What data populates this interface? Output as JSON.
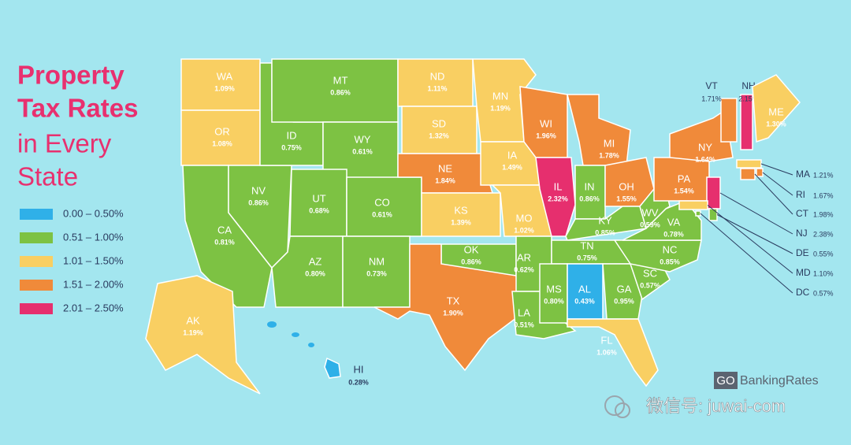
{
  "title": [
    "Property",
    "Tax Rates",
    "in Every",
    "State"
  ],
  "legend": [
    {
      "color": "#2fb0e8",
      "label": "0.00 – 0.50%"
    },
    {
      "color": "#7dc243",
      "label": "0.51 – 1.00%"
    },
    {
      "color": "#f9cf62",
      "label": "1.01 – 1.50%"
    },
    {
      "color": "#f08a3a",
      "label": "1.51 – 2.00%"
    },
    {
      "color": "#e62f6e",
      "label": "2.01 – 2.50%"
    }
  ],
  "states": [
    {
      "code": "WA",
      "rate": "1.09%",
      "bucket": 2
    },
    {
      "code": "OR",
      "rate": "1.08%",
      "bucket": 2
    },
    {
      "code": "CA",
      "rate": "0.81%",
      "bucket": 1
    },
    {
      "code": "NV",
      "rate": "0.86%",
      "bucket": 1
    },
    {
      "code": "ID",
      "rate": "0.75%",
      "bucket": 1
    },
    {
      "code": "MT",
      "rate": "0.86%",
      "bucket": 1
    },
    {
      "code": "WY",
      "rate": "0.61%",
      "bucket": 1
    },
    {
      "code": "UT",
      "rate": "0.68%",
      "bucket": 1
    },
    {
      "code": "CO",
      "rate": "0.61%",
      "bucket": 1
    },
    {
      "code": "AZ",
      "rate": "0.80%",
      "bucket": 1
    },
    {
      "code": "NM",
      "rate": "0.73%",
      "bucket": 1
    },
    {
      "code": "ND",
      "rate": "1.11%",
      "bucket": 2
    },
    {
      "code": "SD",
      "rate": "1.32%",
      "bucket": 2
    },
    {
      "code": "NE",
      "rate": "1.84%",
      "bucket": 3
    },
    {
      "code": "KS",
      "rate": "1.39%",
      "bucket": 2
    },
    {
      "code": "OK",
      "rate": "0.86%",
      "bucket": 1
    },
    {
      "code": "TX",
      "rate": "1.90%",
      "bucket": 3
    },
    {
      "code": "MN",
      "rate": "1.19%",
      "bucket": 2
    },
    {
      "code": "IA",
      "rate": "1.49%",
      "bucket": 2
    },
    {
      "code": "MO",
      "rate": "1.02%",
      "bucket": 2
    },
    {
      "code": "AR",
      "rate": "0.62%",
      "bucket": 1
    },
    {
      "code": "LA",
      "rate": "0.51%",
      "bucket": 1
    },
    {
      "code": "WI",
      "rate": "1.96%",
      "bucket": 3
    },
    {
      "code": "IL",
      "rate": "2.32%",
      "bucket": 4
    },
    {
      "code": "MI",
      "rate": "1.78%",
      "bucket": 3
    },
    {
      "code": "IN",
      "rate": "0.86%",
      "bucket": 1
    },
    {
      "code": "OH",
      "rate": "1.55%",
      "bucket": 3
    },
    {
      "code": "KY",
      "rate": "0.85%",
      "bucket": 1
    },
    {
      "code": "TN",
      "rate": "0.75%",
      "bucket": 1
    },
    {
      "code": "MS",
      "rate": "0.80%",
      "bucket": 1
    },
    {
      "code": "AL",
      "rate": "0.43%",
      "bucket": 0
    },
    {
      "code": "GA",
      "rate": "0.95%",
      "bucket": 1
    },
    {
      "code": "FL",
      "rate": "1.06%",
      "bucket": 2
    },
    {
      "code": "SC",
      "rate": "0.57%",
      "bucket": 1
    },
    {
      "code": "NC",
      "rate": "0.85%",
      "bucket": 1
    },
    {
      "code": "VA",
      "rate": "0.78%",
      "bucket": 1
    },
    {
      "code": "WV",
      "rate": "0.59%",
      "bucket": 1
    },
    {
      "code": "PA",
      "rate": "1.54%",
      "bucket": 3
    },
    {
      "code": "NY",
      "rate": "1.64%",
      "bucket": 3
    },
    {
      "code": "VT",
      "rate": "1.71%",
      "bucket": 3
    },
    {
      "code": "NH",
      "rate": "2.15%",
      "bucket": 4
    },
    {
      "code": "ME",
      "rate": "1.30%",
      "bucket": 2
    },
    {
      "code": "MA",
      "rate": "1.21%",
      "bucket": 2
    },
    {
      "code": "RI",
      "rate": "1.67%",
      "bucket": 3
    },
    {
      "code": "CT",
      "rate": "1.98%",
      "bucket": 3
    },
    {
      "code": "NJ",
      "rate": "2.38%",
      "bucket": 4
    },
    {
      "code": "DE",
      "rate": "0.55%",
      "bucket": 1
    },
    {
      "code": "MD",
      "rate": "1.10%",
      "bucket": 2
    },
    {
      "code": "DC",
      "rate": "0.57%",
      "bucket": 1
    },
    {
      "code": "AK",
      "rate": "1.19%",
      "bucket": 2
    },
    {
      "code": "HI",
      "rate": "0.28%",
      "bucket": 0
    }
  ],
  "source": {
    "logo": "GO",
    "name": "BankingRates"
  },
  "watermark": "微信号: juwai-com"
}
